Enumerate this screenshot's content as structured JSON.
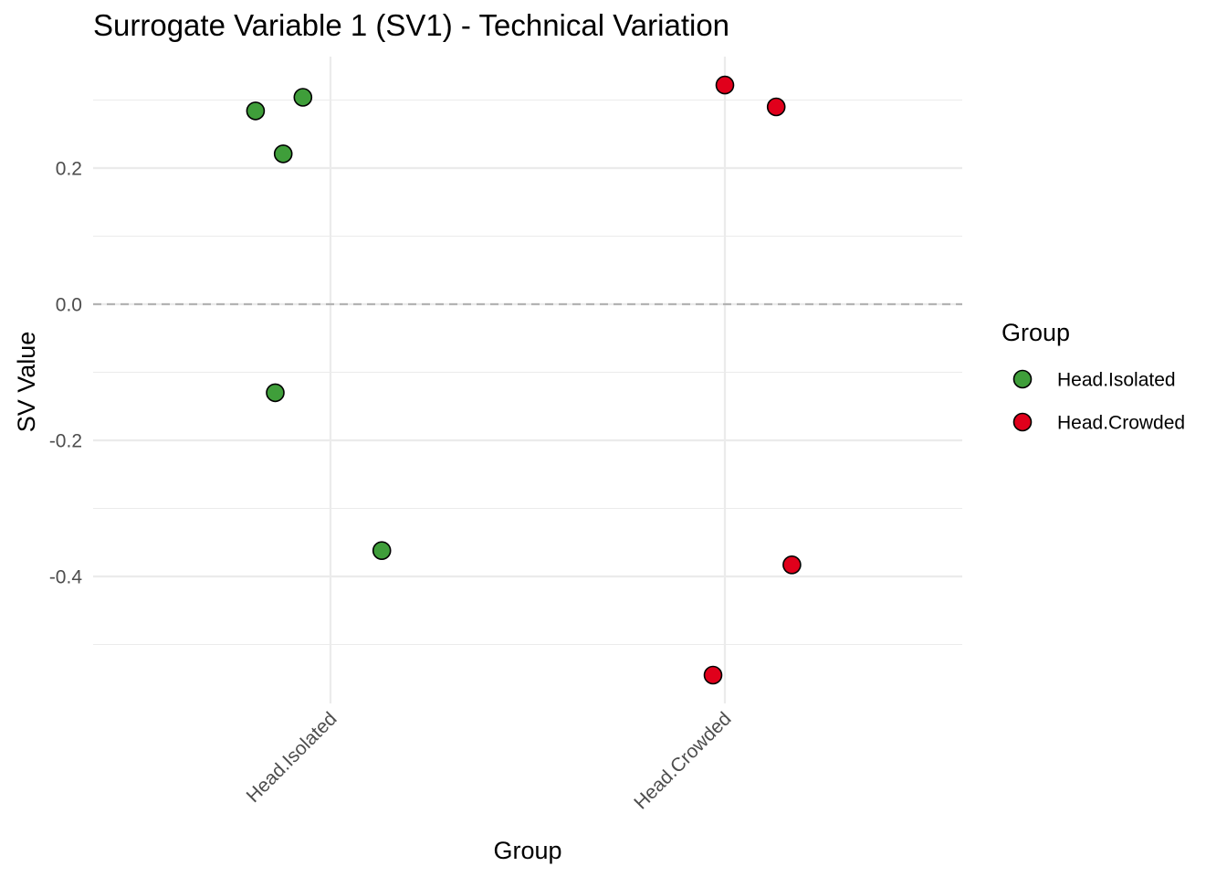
{
  "chart_data": {
    "type": "scatter",
    "title": "Surrogate Variable 1 (SV1) - Technical Variation",
    "xlabel": "Group",
    "ylabel": "SV Value",
    "categories": [
      "Head.Isolated",
      "Head.Crowded"
    ],
    "ylim": [
      -0.57,
      0.36
    ],
    "y_ticks": [
      0.2,
      0.0,
      -0.2,
      -0.4
    ],
    "y_tick_labels": [
      "0.2",
      "0.0",
      "-0.2",
      "-0.4"
    ],
    "y_minor_ticks": [
      0.3,
      0.1,
      -0.1,
      -0.3,
      -0.5
    ],
    "reference_line": {
      "y": 0.0,
      "style": "dashed"
    },
    "legend": {
      "title": "Group",
      "placement": "right",
      "entries": [
        {
          "label": "Head.Isolated",
          "color": "#3f9e3a"
        },
        {
          "label": "Head.Crowded",
          "color": "#e0001b"
        }
      ]
    },
    "series": [
      {
        "name": "Head.Isolated",
        "color": "#3f9e3a",
        "points": [
          {
            "x": "Head.Isolated",
            "jitter": -0.19,
            "y": 0.284
          },
          {
            "x": "Head.Isolated",
            "jitter": -0.12,
            "y": 0.221
          },
          {
            "x": "Head.Isolated",
            "jitter": -0.07,
            "y": 0.304
          },
          {
            "x": "Head.Isolated",
            "jitter": -0.14,
            "y": -0.13
          },
          {
            "x": "Head.Isolated",
            "jitter": 0.13,
            "y": -0.362
          }
        ]
      },
      {
        "name": "Head.Crowded",
        "color": "#e0001b",
        "points": [
          {
            "x": "Head.Crowded",
            "jitter": 0.0,
            "y": 0.322
          },
          {
            "x": "Head.Crowded",
            "jitter": 0.13,
            "y": 0.29
          },
          {
            "x": "Head.Crowded",
            "jitter": 0.17,
            "y": -0.383
          },
          {
            "x": "Head.Crowded",
            "jitter": -0.03,
            "y": -0.545
          }
        ]
      }
    ]
  }
}
